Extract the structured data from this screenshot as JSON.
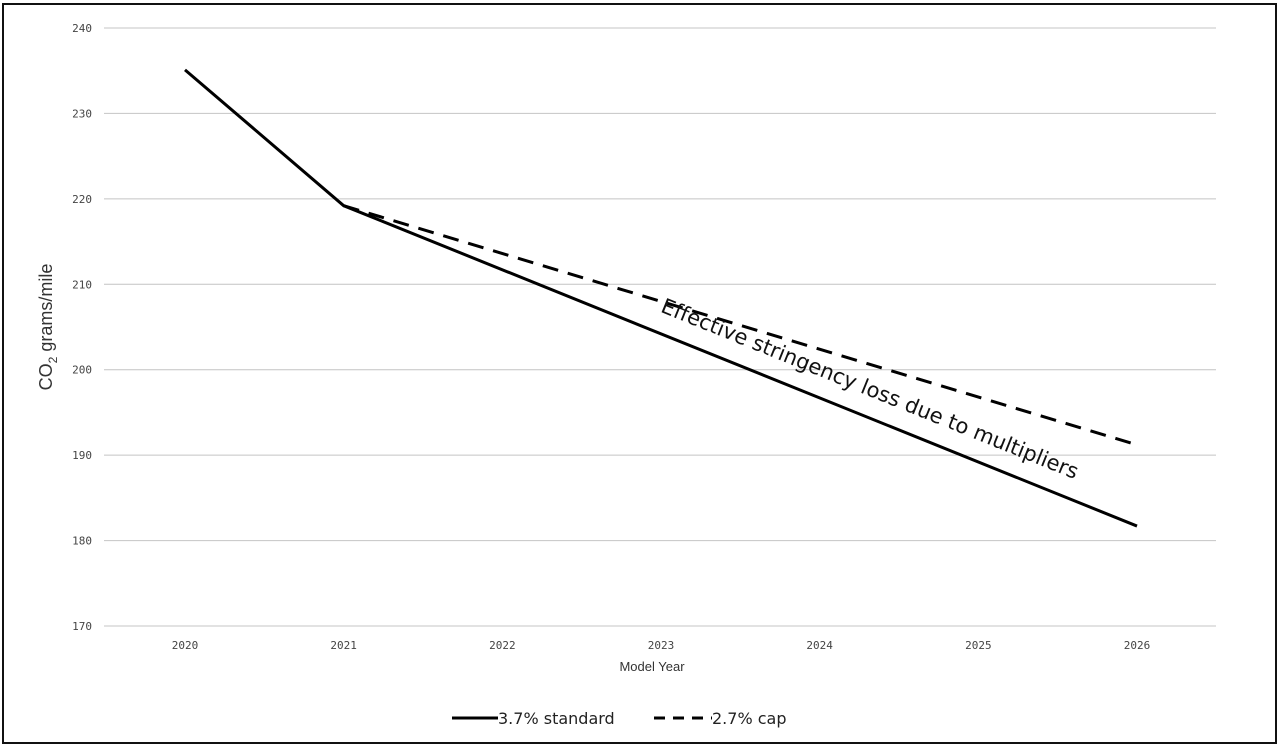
{
  "chart_data": {
    "type": "line",
    "xlabel": "Model Year",
    "ylabel": {
      "main": "CO",
      "sub": "2",
      "rest": " grams/mile"
    },
    "x": [
      "2020",
      "2021",
      "2022",
      "2023",
      "2024",
      "2025",
      "2026"
    ],
    "ylim": [
      170,
      240
    ],
    "yticks": [
      170,
      180,
      190,
      200,
      210,
      220,
      230,
      240
    ],
    "grid": true,
    "legend_position": "bottom",
    "series": [
      {
        "name": "3.7% standard",
        "style": "solid",
        "color": "#000000",
        "x": [
          2020,
          2021,
          2026
        ],
        "values": [
          235.1,
          219.2,
          181.7
        ]
      },
      {
        "name": "2.7% cap",
        "style": "dashed",
        "color": "#000000",
        "x": [
          2021,
          2026
        ],
        "values": [
          219.2,
          191.2
        ]
      }
    ],
    "annotation": {
      "text": "Effective stringency loss due to multipliers",
      "x": 2024.3,
      "y": 197
    }
  }
}
